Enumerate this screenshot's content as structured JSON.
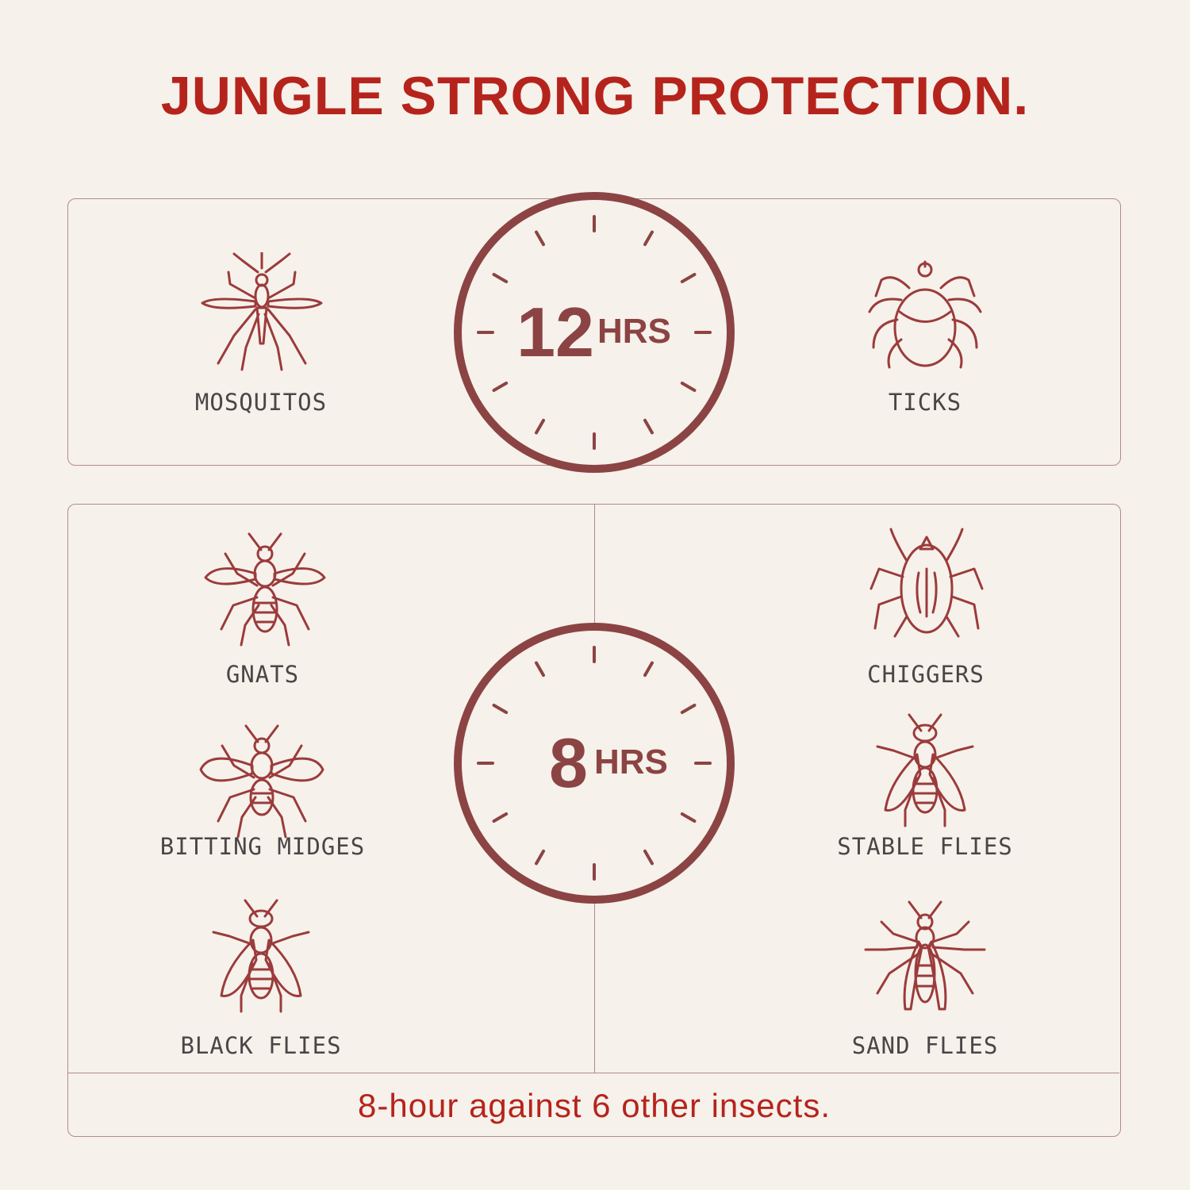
{
  "title": "JUNGLE STRONG PROTECTION.",
  "colors": {
    "background": "#f6f1eb",
    "title": "#b5241c",
    "clock": "#8b4443",
    "icon": "#9b3b3b",
    "label": "#4a4646"
  },
  "top_panel": {
    "clock": {
      "number": "12",
      "unit": "HRS"
    },
    "insects": [
      {
        "label": "MOSQUITOS",
        "icon": "mosquito-icon"
      },
      {
        "label": "TICKS",
        "icon": "tick-icon"
      }
    ]
  },
  "bottom_panel": {
    "clock": {
      "number": "8",
      "unit": "HRS"
    },
    "insects": [
      {
        "label": "GNATS",
        "icon": "gnat-icon"
      },
      {
        "label": "CHIGGERS",
        "icon": "chigger-icon"
      },
      {
        "label": "BITTING MIDGES",
        "icon": "midge-icon"
      },
      {
        "label": "STABLE FLIES",
        "icon": "stable-fly-icon"
      },
      {
        "label": "BLACK FLIES",
        "icon": "black-fly-icon"
      },
      {
        "label": "SAND FLIES",
        "icon": "sand-fly-icon"
      }
    ],
    "footer": "8-hour against 6 other insects."
  }
}
